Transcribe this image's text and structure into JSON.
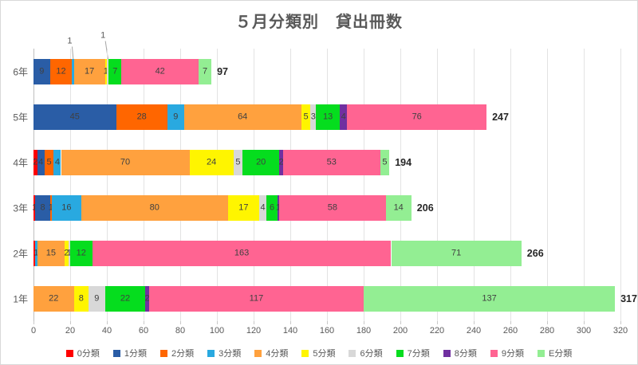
{
  "title": "５月分類別　貸出冊数",
  "chart_data": {
    "type": "bar",
    "orientation": "horizontal",
    "stacked": true,
    "title": "５月分類別　貸出冊数",
    "categories": [
      "6年",
      "5年",
      "4年",
      "3年",
      "2年",
      "1年"
    ],
    "series": [
      {
        "name": "0分類",
        "color": "#ff0000",
        "values": [
          0,
          0,
          2,
          1,
          1,
          0
        ]
      },
      {
        "name": "1分類",
        "color": "#2a5da6",
        "values": [
          9,
          45,
          4,
          8,
          0,
          0
        ]
      },
      {
        "name": "2分類",
        "color": "#ff6600",
        "values": [
          12,
          28,
          5,
          1,
          0,
          0
        ]
      },
      {
        "name": "3分類",
        "color": "#29a9e0",
        "values": [
          1,
          9,
          4,
          16,
          1,
          0
        ]
      },
      {
        "name": "4分類",
        "color": "#ffa13e",
        "values": [
          17,
          64,
          70,
          80,
          15,
          22
        ]
      },
      {
        "name": "5分類",
        "color": "#fff500",
        "values": [
          1,
          5,
          24,
          17,
          2,
          8
        ]
      },
      {
        "name": "6分類",
        "color": "#d8d8d8",
        "values": [
          1,
          3,
          5,
          4,
          1,
          9
        ]
      },
      {
        "name": "7分類",
        "color": "#05dd1e",
        "values": [
          7,
          13,
          20,
          6,
          12,
          22
        ]
      },
      {
        "name": "8分類",
        "color": "#7030a0",
        "values": [
          0,
          4,
          2,
          1,
          0,
          2
        ]
      },
      {
        "name": "9分類",
        "color": "#ff6492",
        "values": [
          42,
          76,
          53,
          58,
          163,
          117
        ]
      },
      {
        "name": "E分類",
        "color": "#93ee93",
        "values": [
          7,
          0,
          5,
          14,
          71,
          137
        ]
      }
    ],
    "totals": [
      97,
      247,
      194,
      206,
      266,
      317
    ],
    "callouts": [
      {
        "row": 0,
        "series": 3,
        "label": "1"
      },
      {
        "row": 0,
        "series": 6,
        "label": "1"
      }
    ],
    "hidden_labels": [
      {
        "row": 4,
        "series": 0
      }
    ],
    "xlim": [
      0,
      320
    ],
    "x_ticks": [
      0,
      20,
      40,
      60,
      80,
      100,
      120,
      140,
      160,
      180,
      200,
      220,
      240,
      260,
      280,
      300,
      320
    ],
    "grid": true,
    "legend_position": "bottom"
  }
}
